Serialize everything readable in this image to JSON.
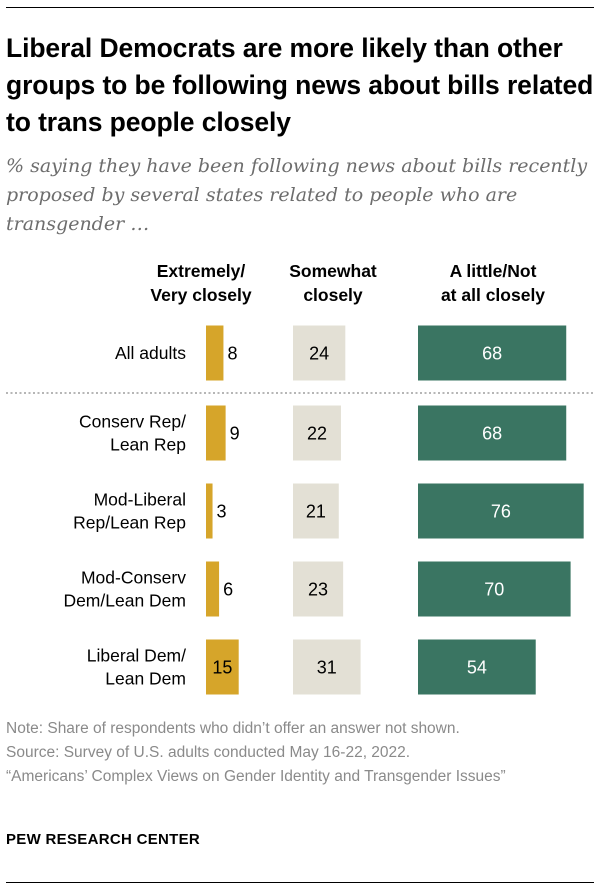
{
  "title": "Liberal Democrats are more likely than other groups to be following news about bills related to trans people closely",
  "subtitle": "% saying they have been following news about bills recently proposed by several states related to people who are transgender …",
  "columns": [
    {
      "label": "Extremely/\nVery closely"
    },
    {
      "label": "Somewhat\nclosely"
    },
    {
      "label": "A little/Not\nat all closely"
    }
  ],
  "colors": {
    "extremely": "#d6a52a",
    "somewhat": "#e3e0d5",
    "little": "#3a7562"
  },
  "chart_data": {
    "type": "bar",
    "categories": [
      "All adults",
      "Conserv Rep/\nLean Rep",
      "Mod-Liberal\nRep/Lean Rep",
      "Mod-Conserv\nDem/Lean Dem",
      "Liberal Dem/\nLean Dem"
    ],
    "series": [
      {
        "name": "Extremely/Very closely",
        "values": [
          8,
          9,
          3,
          6,
          15
        ]
      },
      {
        "name": "Somewhat closely",
        "values": [
          24,
          22,
          21,
          23,
          31
        ]
      },
      {
        "name": "A little/Not at all closely",
        "values": [
          68,
          68,
          76,
          70,
          54
        ]
      }
    ]
  },
  "notes": {
    "note": "Note: Share of respondents who didn’t offer an answer not shown.",
    "source": "Source: Survey of U.S. adults conducted May 16-22, 2022.",
    "report": "“Americans’ Complex Views on Gender Identity and Transgender Issues”"
  },
  "brand": "PEW RESEARCH CENTER"
}
